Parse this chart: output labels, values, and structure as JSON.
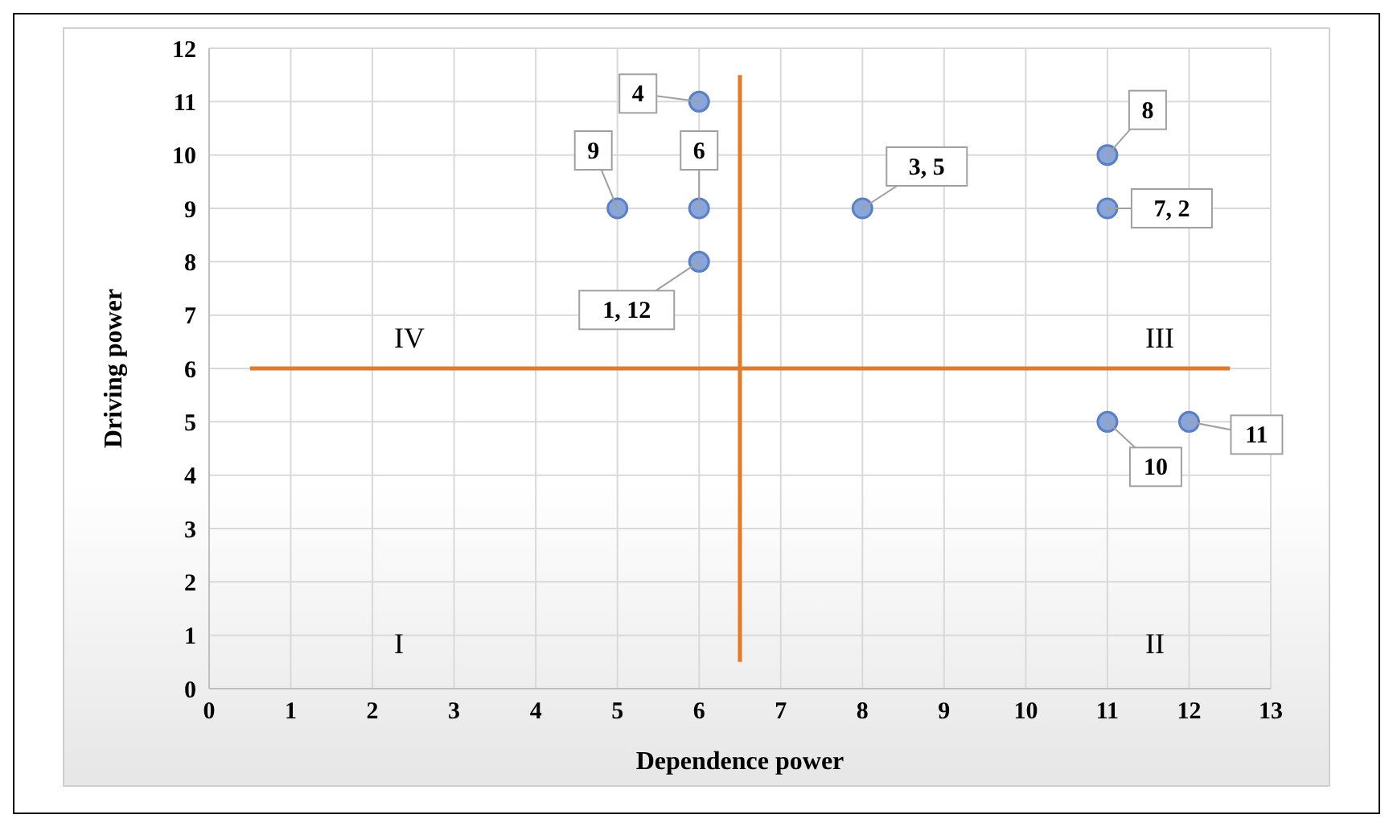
{
  "chart_data": {
    "type": "scatter",
    "xlabel": "Dependence power",
    "ylabel": "Driving power",
    "xlim": [
      0,
      13
    ],
    "xticks": [
      0,
      1,
      2,
      3,
      4,
      5,
      6,
      7,
      8,
      9,
      10,
      11,
      12,
      13
    ],
    "ylim": [
      0,
      12
    ],
    "yticks": [
      0,
      1,
      2,
      3,
      4,
      5,
      6,
      7,
      8,
      9,
      10,
      11,
      12
    ],
    "grid": true,
    "legend": false,
    "series": [
      {
        "color": "#5b7fc4",
        "marker": "circle",
        "x": [
          6,
          5,
          6,
          6,
          8,
          11,
          11,
          11,
          12
        ],
        "values": [
          11,
          9,
          9,
          8,
          9,
          10,
          9,
          5,
          5
        ]
      },
      {
        "type": "line",
        "color": "#e07b2a",
        "x": [
          0.5,
          12.5
        ],
        "values": [
          6,
          6
        ]
      },
      {
        "type": "line",
        "color": "#e07b2a",
        "x": [
          6.5,
          6.5
        ],
        "values": [
          0.5,
          11.5
        ]
      }
    ],
    "annotations": [
      {
        "text": "4",
        "x": 6,
        "y": 11
      },
      {
        "text": "9",
        "x": 5,
        "y": 9
      },
      {
        "text": "6",
        "x": 6,
        "y": 9
      },
      {
        "text": "1, 12",
        "x": 6,
        "y": 8
      },
      {
        "text": "3, 5",
        "x": 8,
        "y": 9
      },
      {
        "text": "8",
        "x": 11,
        "y": 10
      },
      {
        "text": "7, 2",
        "x": 11,
        "y": 9
      },
      {
        "text": "10",
        "x": 11,
        "y": 5
      },
      {
        "text": "11",
        "x": 12,
        "y": 5
      },
      "IV",
      "III",
      "I",
      "II"
    ]
  }
}
